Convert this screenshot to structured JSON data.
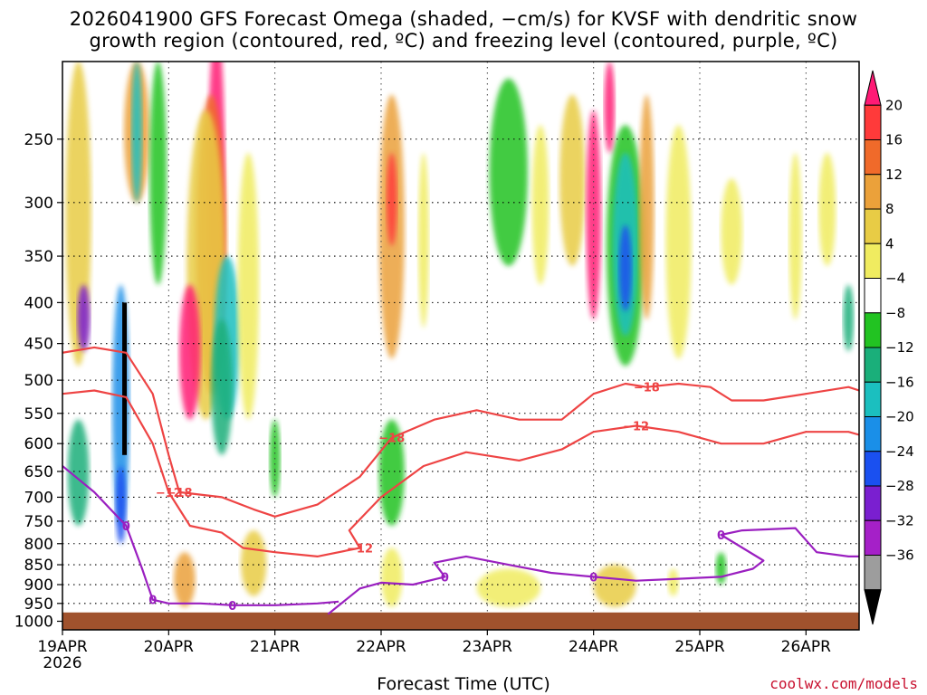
{
  "chart_data": {
    "type": "heatmap",
    "title": "2026041900 GFS Forecast Omega (shaded, −cm/s) for KVSF with dendritic snow",
    "subtitle": "growth region (contoured, red, ºC) and freezing level (contoured, purple, ºC)",
    "xlabel": "Forecast Time (UTC)",
    "ylabel": "",
    "credit": "coolwx.com/models",
    "x_ticks": [
      "19APR",
      "20APR",
      "21APR",
      "22APR",
      "23APR",
      "24APR",
      "25APR",
      "26APR"
    ],
    "x_tick_sub": "2026",
    "x_range_days": [
      0,
      7.5
    ],
    "y_ticks": [
      250,
      300,
      350,
      400,
      450,
      500,
      550,
      600,
      650,
      700,
      750,
      800,
      850,
      900,
      950,
      1000
    ],
    "y_range_hpa": [
      200,
      1025
    ],
    "y_scale": "log",
    "grid": true,
    "colorbar": {
      "labels": [
        "20",
        "16",
        "12",
        "8",
        "4",
        "−4",
        "−8",
        "−12",
        "−16",
        "−20",
        "−24",
        "−28",
        "−32",
        "−36"
      ],
      "colors": [
        "#ff1a75",
        "#ff3a3a",
        "#f06a2a",
        "#eba13a",
        "#e8cc45",
        "#f0ec60",
        "#ffffff",
        "#22c322",
        "#1aaf7a",
        "#1bbfbf",
        "#1a8fe8",
        "#1a50f0",
        "#7a1fd0",
        "#a520c8",
        "#9d9d9d",
        "#000000"
      ]
    },
    "contours_dgz": [
      {
        "level": -18,
        "points": [
          [
            0.0,
            462
          ],
          [
            0.3,
            455
          ],
          [
            0.6,
            462
          ],
          [
            0.85,
            520
          ],
          [
            1.0,
            620
          ],
          [
            1.1,
            690
          ],
          [
            1.5,
            700
          ],
          [
            1.8,
            725
          ],
          [
            2.0,
            740
          ],
          [
            2.4,
            715
          ],
          [
            2.8,
            660
          ],
          [
            3.1,
            590
          ],
          [
            3.5,
            560
          ],
          [
            3.9,
            545
          ],
          [
            4.3,
            560
          ],
          [
            4.7,
            560
          ],
          [
            5.0,
            520
          ],
          [
            5.3,
            505
          ],
          [
            5.5,
            510
          ],
          [
            5.8,
            505
          ],
          [
            6.1,
            510
          ],
          [
            6.3,
            530
          ],
          [
            6.6,
            530
          ],
          [
            7.0,
            520
          ],
          [
            7.4,
            510
          ],
          [
            7.5,
            515
          ]
        ]
      },
      {
        "level": -12,
        "points": [
          [
            0.0,
            520
          ],
          [
            0.3,
            515
          ],
          [
            0.6,
            525
          ],
          [
            0.85,
            600
          ],
          [
            1.0,
            690
          ],
          [
            1.2,
            760
          ],
          [
            1.5,
            775
          ],
          [
            1.7,
            810
          ],
          [
            2.0,
            820
          ],
          [
            2.4,
            830
          ],
          [
            2.8,
            810
          ],
          [
            2.7,
            770
          ],
          [
            3.0,
            700
          ],
          [
            3.4,
            640
          ],
          [
            3.8,
            615
          ],
          [
            4.3,
            630
          ],
          [
            4.7,
            610
          ],
          [
            5.0,
            580
          ],
          [
            5.4,
            570
          ],
          [
            5.8,
            580
          ],
          [
            6.2,
            600
          ],
          [
            6.6,
            600
          ],
          [
            7.0,
            580
          ],
          [
            7.4,
            580
          ],
          [
            7.5,
            585
          ]
        ]
      }
    ],
    "contours_freezing": [
      {
        "level": 0,
        "points": [
          [
            0.0,
            640
          ],
          [
            0.3,
            690
          ],
          [
            0.6,
            760
          ],
          [
            0.75,
            860
          ],
          [
            0.85,
            940
          ],
          [
            1.0,
            950
          ],
          [
            1.3,
            950
          ],
          [
            1.6,
            955
          ],
          [
            2.0,
            955
          ],
          [
            2.4,
            950
          ],
          [
            2.6,
            945
          ]
        ]
      },
      {
        "level": 0,
        "points": [
          [
            2.5,
            980
          ],
          [
            2.8,
            910
          ],
          [
            3.0,
            895
          ],
          [
            3.3,
            900
          ],
          [
            3.6,
            880
          ],
          [
            3.5,
            845
          ],
          [
            3.8,
            830
          ],
          [
            4.2,
            850
          ],
          [
            4.6,
            870
          ],
          [
            5.0,
            880
          ],
          [
            5.4,
            890
          ],
          [
            5.8,
            885
          ],
          [
            6.2,
            880
          ],
          [
            6.5,
            860
          ],
          [
            6.6,
            840
          ],
          [
            6.2,
            780
          ],
          [
            6.4,
            770
          ],
          [
            6.9,
            765
          ],
          [
            7.1,
            820
          ],
          [
            7.4,
            830
          ],
          [
            7.5,
            830
          ]
        ]
      }
    ],
    "terrain_top_hpa": 975
  }
}
